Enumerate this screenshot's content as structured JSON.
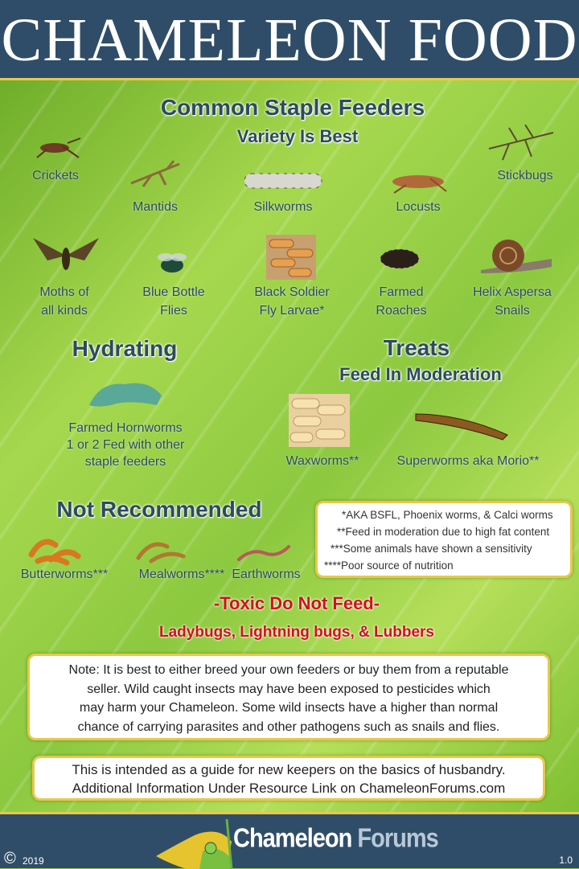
{
  "title": "Chameleon Food",
  "staple": {
    "heading": "Common Staple Feeders",
    "sub": "Variety Is Best",
    "items": [
      {
        "label": "Crickets"
      },
      {
        "label": "Mantids"
      },
      {
        "label": "Silkworms"
      },
      {
        "label": "Locusts"
      },
      {
        "label": "Stickbugs"
      },
      {
        "l1": "Moths of",
        "l2": "all kinds"
      },
      {
        "l1": "Blue Bottle",
        "l2": "Flies"
      },
      {
        "l1": "Black Soldier",
        "l2": "Fly Larvae*"
      },
      {
        "l1": "Farmed",
        "l2": "Roaches"
      },
      {
        "l1": "Helix Aspersa",
        "l2": "Snails"
      }
    ]
  },
  "hydrating": {
    "heading": "Hydrating",
    "lines": [
      "Farmed Hornworms",
      "1 or 2 Fed with other",
      "staple feeders"
    ]
  },
  "treats": {
    "heading": "Treats",
    "sub": "Feed In Moderation",
    "items": [
      "Waxworms**",
      "Superworms aka Morio**"
    ]
  },
  "not_recommended": {
    "heading": "Not Recommended",
    "items": [
      "Butterworms***",
      "Mealworms****",
      "Earthworms"
    ]
  },
  "footnotes": [
    "*AKA BSFL, Phoenix worms, & Calci worms",
    "**Feed in moderation due to high fat content",
    "***Some animals have shown a sensitivity",
    "****Poor source of nutrition"
  ],
  "toxic": {
    "heading": "-Toxic Do Not Feed-",
    "sub": "Ladybugs, Lightning bugs, & Lubbers"
  },
  "note": [
    "Note: It is best to either breed your own feeders or buy them from a reputable",
    "seller. Wild caught insects may have been exposed to pesticides which",
    "may harm your Chameleon. Some wild insects have a higher than normal",
    "chance of carrying parasites and other pathogens such as snails and flies."
  ],
  "guide": [
    "This is intended as a guide for new keepers on the basics of husbandry.",
    "Additional Information Under Resource Link on ChameleonForums.com"
  ],
  "footer": {
    "copyright": "©",
    "year": "2019",
    "logo1": "Chameleon",
    "logo2": "Forums",
    "version": "1.0"
  },
  "colors": {
    "header": "#2f4d68",
    "heading": "#2d4a62",
    "toxic": "#d4101c",
    "border": "#e8c84a"
  }
}
